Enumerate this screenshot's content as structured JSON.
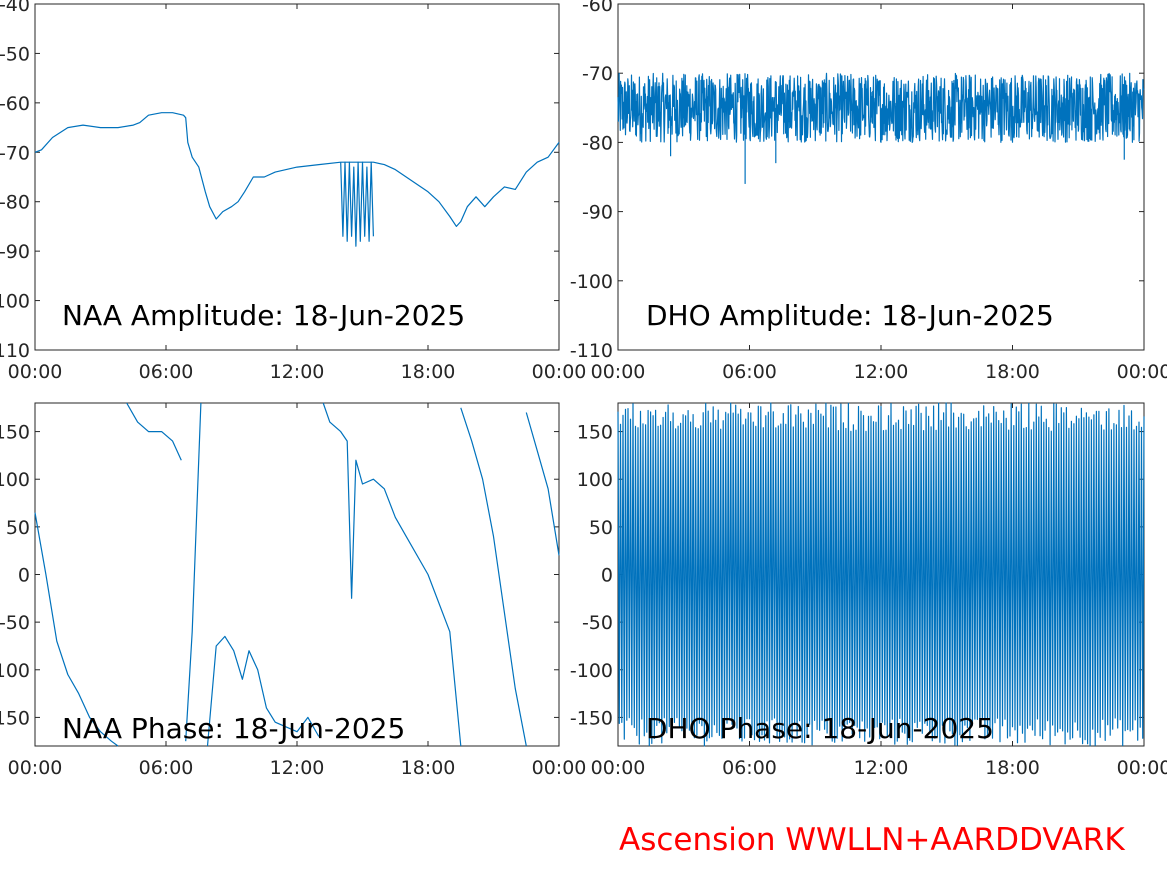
{
  "footer": {
    "label": "Ascension WWLLN+AARDDVARK",
    "color": "#ff0000"
  },
  "colors": {
    "trace": "#0072bd",
    "axis": "#262626"
  },
  "chart_data": [
    {
      "type": "line",
      "title": "NAA Amplitude: 18-Jun-2025",
      "xlim": [
        "00:00",
        "24:00"
      ],
      "xticks": [
        "00:00",
        "06:00",
        "12:00",
        "18:00",
        "00:00"
      ],
      "ylim": [
        -110,
        -40
      ],
      "yticks": [
        "-40",
        "-50",
        "-60",
        "-70",
        "-80",
        "-90",
        "-100",
        "-110"
      ],
      "series": [
        {
          "x_hours": [
            0,
            0.3,
            0.8,
            1.5,
            2.2,
            3.0,
            3.8,
            4.5,
            4.8,
            5.2,
            5.8,
            6.3,
            6.8,
            6.9,
            7.0,
            7.2,
            7.5,
            7.8,
            8.0,
            8.3,
            8.6,
            9.0,
            9.3,
            9.6,
            10.0,
            10.5,
            11.0,
            12.0,
            13.0,
            14.0,
            14.4,
            15.0,
            15.5,
            16.0,
            16.5,
            17.0,
            17.5,
            18.0,
            18.5,
            19.0,
            19.3,
            19.5,
            19.8,
            20.2,
            20.6,
            21.0,
            21.5,
            22.0,
            22.5,
            23.0,
            23.5,
            24.0
          ],
          "values": [
            -70,
            -69.5,
            -67,
            -65,
            -64.5,
            -65,
            -65,
            -64.5,
            -64,
            -62.5,
            -62,
            -62,
            -62.5,
            -63,
            -68,
            -71,
            -73,
            -78,
            -81,
            -83.5,
            -82,
            -81,
            -80,
            -78,
            -75,
            -75,
            -74,
            -73,
            -72.5,
            -72,
            -72,
            -72,
            -72,
            -72.5,
            -73.5,
            -75,
            -76.5,
            -78,
            -80,
            -83,
            -85,
            -84,
            -81,
            -79,
            -81,
            -79,
            -77,
            -77.5,
            -74,
            -72,
            -71,
            -68
          ]
        },
        {
          "name": "",
          "x_hours": [
            14.0,
            14.1,
            14.2,
            14.3,
            14.4,
            14.5,
            14.6,
            14.7,
            14.8,
            14.9,
            15.0,
            15.1,
            15.2,
            15.3,
            15.4,
            15.5
          ],
          "values": [
            -72,
            -87,
            -72,
            -88,
            -72,
            -87,
            -73,
            -89,
            -72,
            -88,
            -72,
            -87,
            -73,
            -88,
            -72,
            -87
          ]
        }
      ]
    },
    {
      "type": "line",
      "title": "DHO Amplitude: 18-Jun-2025",
      "xlim": [
        "00:00",
        "24:00"
      ],
      "xticks": [
        "00:00",
        "06:00",
        "12:00",
        "18:00",
        "00:00"
      ],
      "ylim": [
        -110,
        -60
      ],
      "yticks": [
        "-60",
        "-70",
        "-80",
        "-90",
        "-100",
        "-110"
      ],
      "band": {
        "center": -75,
        "halfwidth": 5,
        "note": "dense noisy band"
      },
      "spikes": [
        {
          "x_hours": 2.4,
          "value": -82
        },
        {
          "x_hours": 5.8,
          "value": -86
        },
        {
          "x_hours": 7.2,
          "value": -83
        },
        {
          "x_hours": 23.1,
          "value": -82.5
        }
      ]
    },
    {
      "type": "line",
      "title": "NAA Phase: 18-Jun-2025",
      "xlim": [
        "00:00",
        "24:00"
      ],
      "xticks": [
        "00:00",
        "06:00",
        "12:00",
        "18:00",
        "00:00"
      ],
      "ylim": [
        -180,
        180
      ],
      "yticks": [
        "150",
        "100",
        "50",
        "0",
        "-50",
        "-100",
        "-150"
      ],
      "series": [
        {
          "x_hours": [
            0,
            0.5,
            1.0,
            1.5,
            2.0,
            2.5,
            3.0,
            3.5,
            3.8
          ],
          "values": [
            65,
            0,
            -70,
            -105,
            -125,
            -150,
            -165,
            -175,
            -180
          ]
        },
        {
          "x_hours": [
            4.2,
            4.7,
            5.2,
            5.8,
            6.3,
            6.7
          ],
          "values": [
            180,
            160,
            150,
            150,
            140,
            120
          ]
        },
        {
          "x_hours": [
            6.9,
            7.2,
            7.6
          ],
          "values": [
            -175,
            -60,
            180
          ]
        },
        {
          "x_hours": [
            7.9,
            8.3,
            8.7,
            9.1,
            9.5,
            9.8,
            10.2,
            10.6,
            11.0,
            11.5,
            12.0,
            12.5,
            13.0
          ],
          "values": [
            -180,
            -75,
            -65,
            -80,
            -110,
            -80,
            -100,
            -140,
            -155,
            -160,
            -165,
            -150,
            -170
          ]
        },
        {
          "x_hours": [
            13.2,
            13.5,
            14.0,
            14.3,
            14.5,
            14.7,
            15.0,
            15.5,
            16.0,
            16.5,
            17.0,
            18.0,
            19.0,
            19.5
          ],
          "values": [
            180,
            160,
            150,
            140,
            -25,
            120,
            95,
            100,
            90,
            60,
            40,
            0,
            -60,
            -180
          ]
        },
        {
          "x_hours": [
            19.5,
            20.0,
            20.5,
            21.0,
            21.5,
            22.0,
            22.5
          ],
          "values": [
            175,
            140,
            100,
            40,
            -40,
            -120,
            -180
          ]
        },
        {
          "x_hours": [
            22.5,
            23.0,
            23.5,
            24.0
          ],
          "values": [
            170,
            130,
            90,
            20
          ]
        }
      ]
    },
    {
      "type": "line",
      "title": "DHO Phase: 18-Jun-2025",
      "xlim": [
        "00:00",
        "24:00"
      ],
      "xticks": [
        "00:00",
        "06:00",
        "12:00",
        "18:00",
        "00:00"
      ],
      "ylim": [
        -180,
        180
      ],
      "yticks": [
        "150",
        "100",
        "50",
        "0",
        "-50",
        "-100",
        "-150"
      ],
      "band": {
        "center": 0,
        "halfwidth": 180,
        "note": "rapid phase wrapping"
      }
    }
  ]
}
